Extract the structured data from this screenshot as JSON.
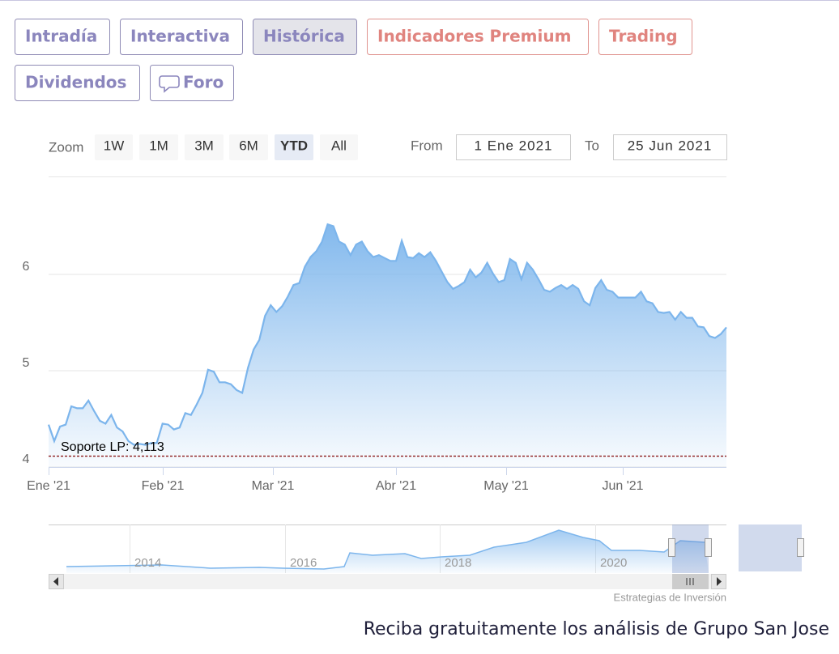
{
  "tabs": [
    "Intradía",
    "Interactiva",
    "Histórica",
    "Indicadores Premium",
    "Trading",
    "Dividendos",
    "Foro"
  ],
  "range_selector": {
    "zoom_label": "Zoom",
    "buttons": [
      "1W",
      "1M",
      "3M",
      "6M",
      "YTD",
      "All"
    ],
    "from_label": "From",
    "from": "1 Ene 2021",
    "to_label": "To",
    "to": "25 Jun 2021"
  },
  "chart_data": {
    "type": "area",
    "color": "#7cb5ec",
    "values": [
      4.44,
      4.27,
      4.42,
      4.44,
      4.63,
      4.61,
      4.61,
      4.69,
      4.58,
      4.48,
      4.45,
      4.54,
      4.41,
      4.37,
      4.27,
      4.23,
      4.24,
      4.23,
      4.25,
      4.25,
      4.45,
      4.44,
      4.39,
      4.41,
      4.56,
      4.54,
      4.65,
      4.77,
      5.01,
      4.99,
      4.88,
      4.88,
      4.86,
      4.8,
      4.77,
      5.03,
      5.22,
      5.32,
      5.57,
      5.68,
      5.61,
      5.67,
      5.77,
      5.89,
      5.91,
      6.08,
      6.18,
      6.24,
      6.34,
      6.52,
      6.5,
      6.34,
      6.31,
      6.2,
      6.31,
      6.34,
      6.24,
      6.18,
      6.2,
      6.17,
      6.14,
      6.14,
      6.35,
      6.18,
      6.17,
      6.22,
      6.18,
      6.23,
      6.14,
      6.03,
      5.92,
      5.85,
      5.88,
      5.92,
      6.05,
      5.97,
      6.02,
      6.12,
      6.01,
      5.92,
      5.94,
      6.16,
      6.12,
      5.95,
      6.12,
      6.05,
      5.95,
      5.84,
      5.82,
      5.86,
      5.89,
      5.85,
      5.89,
      5.85,
      5.72,
      5.68,
      5.86,
      5.94,
      5.84,
      5.82,
      5.76,
      5.76,
      5.76,
      5.76,
      5.82,
      5.72,
      5.7,
      5.61,
      5.6,
      5.61,
      5.53,
      5.61,
      5.55,
      5.55,
      5.46,
      5.45,
      5.36,
      5.34,
      5.38,
      5.45
    ],
    "ylim": [
      4,
      7
    ],
    "yticks": [
      4,
      5,
      6
    ],
    "grid": true,
    "x_labels": [
      "Ene '21",
      "Feb '21",
      "Mar '21",
      "Abr '21",
      "May '21",
      "Jun '21"
    ],
    "annotations": [
      {
        "value": 4.113,
        "label": "Soporte LP: 4,113",
        "color": "#8b1a1a"
      }
    ],
    "navigator_labels": [
      "2014",
      "2016",
      "2018",
      "2020"
    ],
    "credits": "Estrategias de Inversión"
  },
  "footer": "Reciba gratuitamente los análisis de Grupo San Jose"
}
